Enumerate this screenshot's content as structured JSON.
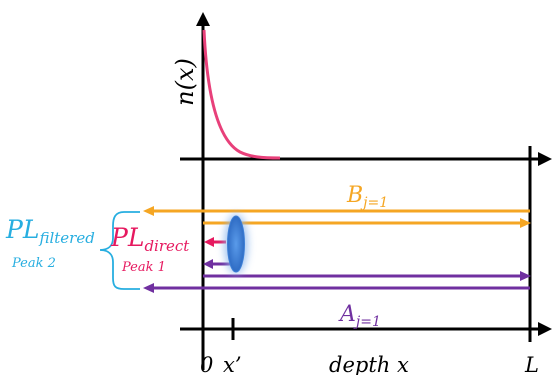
{
  "labels": {
    "n_base": "n(",
    "n_var": "x",
    "n_close": ")",
    "b_main": "B",
    "b_sub": "j=1",
    "a_main": "A",
    "a_sub": "j=1",
    "pl_filtered_main": "PL",
    "pl_filtered_sub": "filtered",
    "peak2": "Peak 2",
    "pl_direct_main": "PL",
    "pl_direct_sub": "direct",
    "peak1": "Peak 1",
    "tick_zero": "0",
    "tick_xprime": "x’",
    "tick_depth": "depth x",
    "tick_L": "L"
  },
  "colors": {
    "axis": "#000000",
    "orange": "#f5a623",
    "purple": "#7030a0",
    "crimson": "#e6195f",
    "cyan": "#27aee0",
    "blue_lens": "#3d7fd6",
    "curve": "#e8407a"
  }
}
